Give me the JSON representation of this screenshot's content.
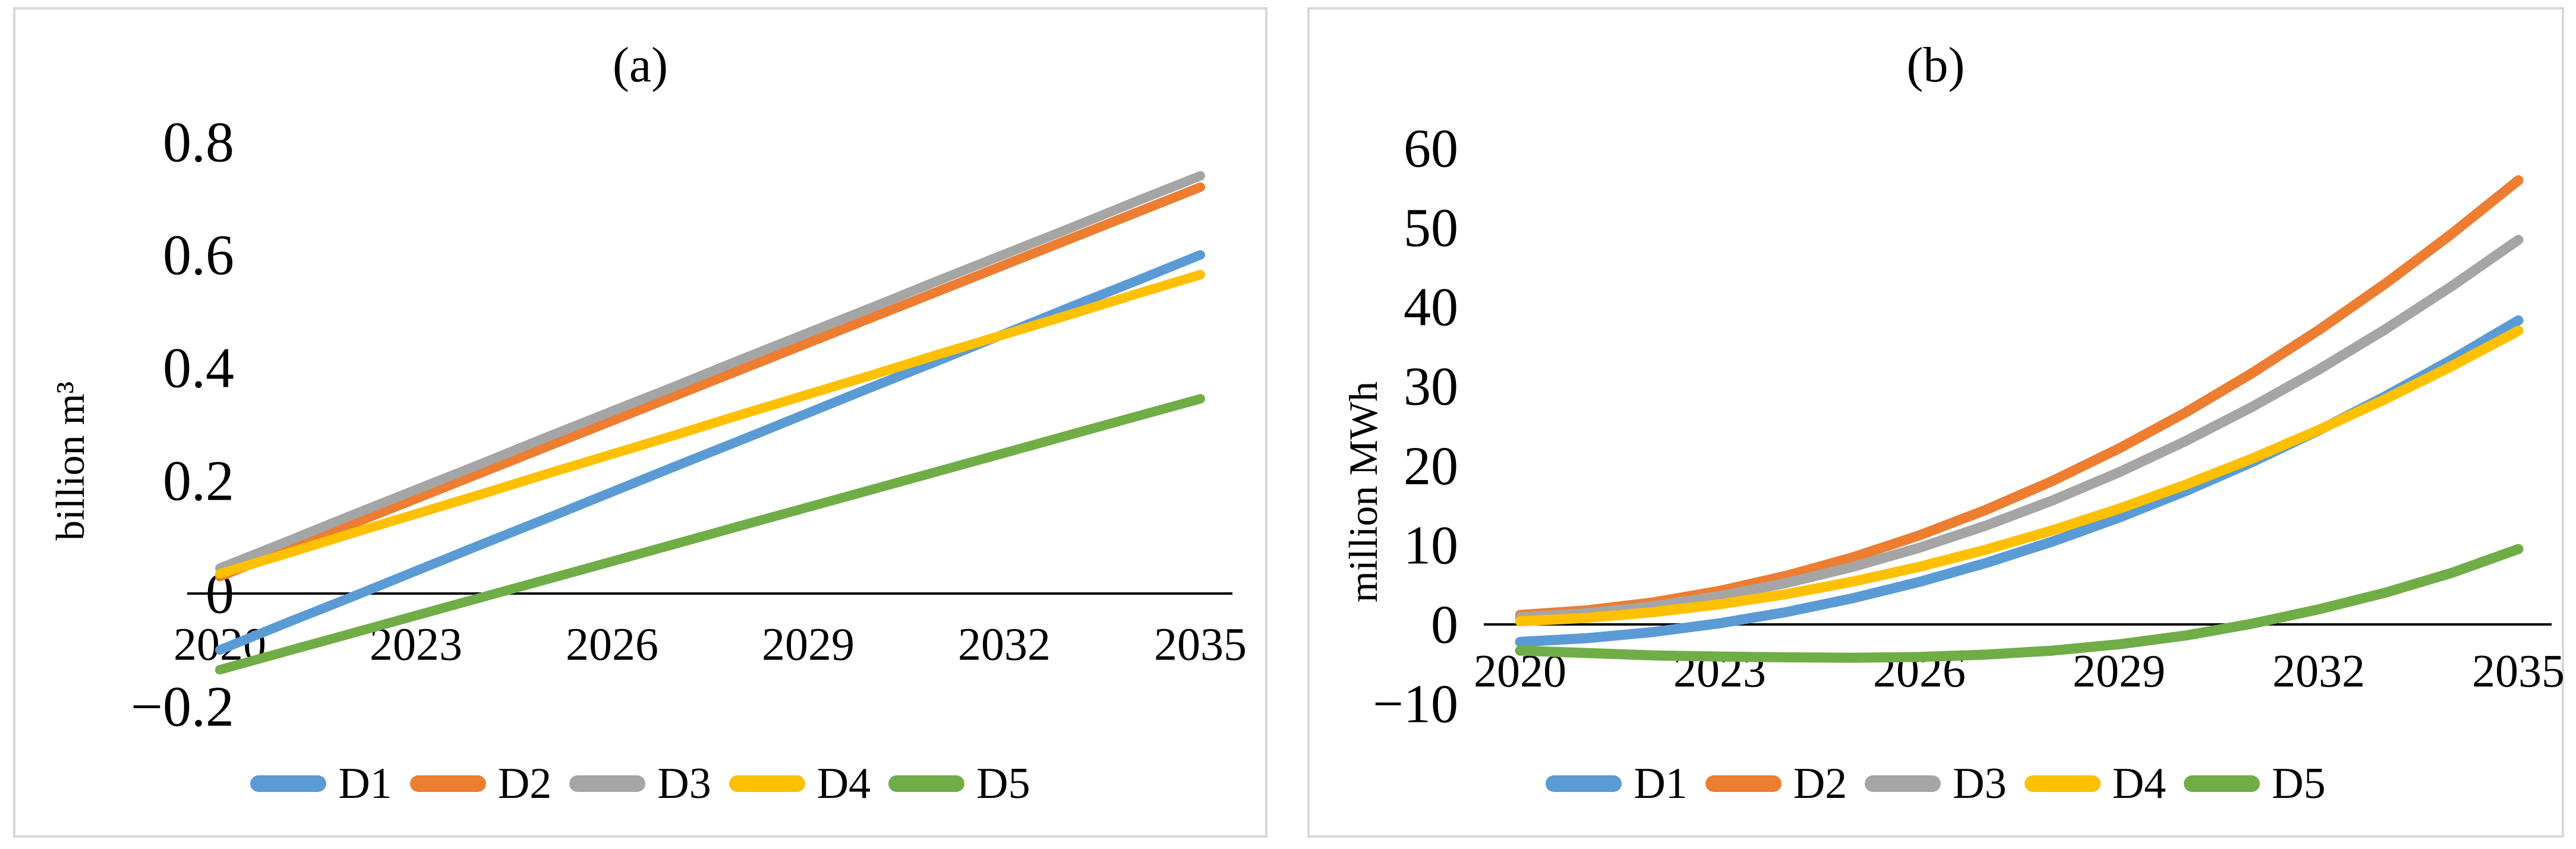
{
  "figure": {
    "background": "#ffffff",
    "panel_border_color": "#d9d9d9",
    "axis_line_color": "#000000"
  },
  "chart_data": [
    {
      "type": "line",
      "title": "(a)",
      "xlabel": "",
      "ylabel": "billion m³",
      "grid": false,
      "legend_position": "bottom",
      "x": [
        2020,
        2021,
        2022,
        2023,
        2024,
        2025,
        2026,
        2027,
        2028,
        2029,
        2030,
        2031,
        2032,
        2033,
        2034,
        2035
      ],
      "x_tick_labels": [
        "2020",
        "2023",
        "2026",
        "2029",
        "2032",
        "2035"
      ],
      "x_tick_years": [
        2020,
        2023,
        2026,
        2029,
        2032,
        2035
      ],
      "y_tick_labels": [
        "0.8",
        "0.6",
        "0.4",
        "0.2",
        "0",
        "−0.2"
      ],
      "y_tick_values": [
        0.8,
        0.6,
        0.4,
        0.2,
        0,
        -0.2
      ],
      "ylim": [
        -0.2,
        0.8
      ],
      "series": [
        {
          "name": "D1",
          "color": "#5B9BD5",
          "values": [
            -0.1,
            -0.053,
            -0.007,
            0.04,
            0.087,
            0.133,
            0.18,
            0.227,
            0.273,
            0.32,
            0.367,
            0.413,
            0.46,
            0.507,
            0.553,
            0.6
          ]
        },
        {
          "name": "D2",
          "color": "#ED7D31",
          "values": [
            0.03,
            0.076,
            0.122,
            0.168,
            0.214,
            0.26,
            0.306,
            0.352,
            0.398,
            0.444,
            0.49,
            0.536,
            0.582,
            0.628,
            0.674,
            0.72
          ]
        },
        {
          "name": "D3",
          "color": "#A5A5A5",
          "values": [
            0.045,
            0.091,
            0.138,
            0.184,
            0.23,
            0.277,
            0.323,
            0.369,
            0.416,
            0.462,
            0.508,
            0.555,
            0.601,
            0.647,
            0.694,
            0.74
          ]
        },
        {
          "name": "D4",
          "color": "#FFC000",
          "values": [
            0.035,
            0.07,
            0.106,
            0.141,
            0.176,
            0.212,
            0.247,
            0.282,
            0.318,
            0.353,
            0.388,
            0.424,
            0.459,
            0.494,
            0.53,
            0.565
          ]
        },
        {
          "name": "D5",
          "color": "#70AD47",
          "values": [
            -0.135,
            -0.103,
            -0.071,
            -0.039,
            -0.007,
            0.025,
            0.057,
            0.089,
            0.121,
            0.153,
            0.185,
            0.217,
            0.249,
            0.281,
            0.313,
            0.345
          ]
        }
      ]
    },
    {
      "type": "line",
      "title": "(b)",
      "xlabel": "",
      "ylabel": "million MWh",
      "grid": false,
      "legend_position": "bottom",
      "x": [
        2020,
        2021,
        2022,
        2023,
        2024,
        2025,
        2026,
        2027,
        2028,
        2029,
        2030,
        2031,
        2032,
        2033,
        2034,
        2035
      ],
      "x_tick_labels": [
        "2020",
        "2023",
        "2026",
        "2029",
        "2032",
        "2035"
      ],
      "x_tick_years": [
        2020,
        2023,
        2026,
        2029,
        2032,
        2035
      ],
      "y_tick_labels": [
        "60",
        "50",
        "40",
        "30",
        "20",
        "10",
        "0",
        "−10"
      ],
      "y_tick_values": [
        60,
        50,
        40,
        30,
        20,
        10,
        0,
        -10
      ],
      "ylim": [
        -10,
        60
      ],
      "series": [
        {
          "name": "D1",
          "color": "#5B9BD5",
          "values": [
            -2.2,
            -1.74,
            -0.96,
            0.14,
            1.56,
            3.3,
            5.36,
            7.74,
            10.44,
            13.46,
            16.8,
            20.46,
            24.44,
            28.74,
            33.36,
            38.3
          ]
        },
        {
          "name": "D2",
          "color": "#ED7D31",
          "values": [
            1.2,
            1.77,
            2.78,
            4.23,
            6.12,
            8.45,
            11.22,
            14.43,
            18.08,
            22.17,
            26.7,
            31.67,
            37.08,
            42.93,
            49.22,
            55.95
          ]
        },
        {
          "name": "D3",
          "color": "#A5A5A5",
          "values": [
            0.9,
            1.41,
            2.3,
            3.57,
            5.22,
            7.25,
            9.66,
            12.45,
            15.62,
            19.17,
            23.1,
            27.41,
            32.1,
            37.17,
            42.62,
            48.45
          ]
        },
        {
          "name": "D4",
          "color": "#FFC000",
          "values": [
            0.4,
            0.82,
            1.54,
            2.54,
            3.82,
            5.4,
            7.26,
            9.42,
            11.86,
            14.58,
            17.6,
            20.9,
            24.5,
            28.38,
            32.54,
            37.0
          ]
        },
        {
          "name": "D5",
          "color": "#70AD47",
          "values": [
            -3.3,
            -3.6,
            -3.9,
            -4.05,
            -4.15,
            -4.2,
            -4.1,
            -3.8,
            -3.3,
            -2.5,
            -1.4,
            0.1,
            1.9,
            4.0,
            6.5,
            9.5
          ]
        }
      ]
    }
  ]
}
